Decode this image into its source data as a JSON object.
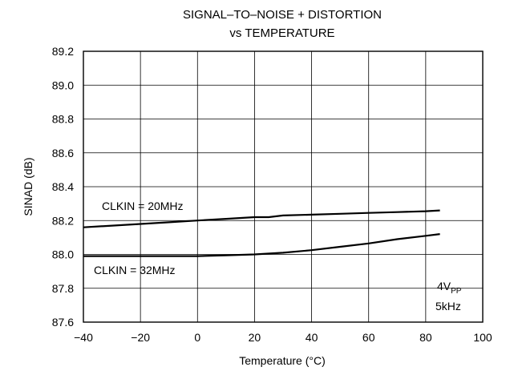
{
  "chart_data": {
    "type": "line",
    "title_lines": [
      "SIGNAL–TO–NOISE + DISTORTION",
      "vs TEMPERATURE"
    ],
    "xlabel": "Temperature (°C)",
    "ylabel": "SINAD (dB)",
    "xlim": [
      -40,
      100
    ],
    "ylim": [
      87.6,
      89.2
    ],
    "x_ticks": [
      -40,
      -20,
      0,
      20,
      40,
      60,
      80,
      100
    ],
    "x_tick_labels": [
      "−40",
      "−20",
      "0",
      "20",
      "40",
      "60",
      "80",
      "100"
    ],
    "y_ticks": [
      87.6,
      87.8,
      88.0,
      88.2,
      88.4,
      88.6,
      88.8,
      89.0,
      89.2
    ],
    "y_tick_labels": [
      "87.6",
      "87.8",
      "88.0",
      "88.2",
      "88.4",
      "88.6",
      "88.8",
      "89.0",
      "89.2"
    ],
    "grid": true,
    "series": [
      {
        "name": "CLKIN = 20MHz",
        "x": [
          -40,
          -30,
          -20,
          -10,
          0,
          10,
          20,
          25,
          30,
          40,
          50,
          60,
          70,
          80,
          85
        ],
        "y": [
          88.16,
          88.17,
          88.18,
          88.19,
          88.2,
          88.21,
          88.22,
          88.22,
          88.23,
          88.235,
          88.24,
          88.245,
          88.25,
          88.255,
          88.26
        ]
      },
      {
        "name": "CLKIN = 32MHz",
        "x": [
          -40,
          -20,
          0,
          10,
          20,
          30,
          40,
          50,
          60,
          70,
          80,
          85
        ],
        "y": [
          87.99,
          87.99,
          87.99,
          87.995,
          88.0,
          88.01,
          88.025,
          88.045,
          88.065,
          88.09,
          88.11,
          88.12
        ]
      }
    ],
    "annotation": {
      "line1_main": "4V",
      "line1_sub": "PP",
      "line2": "5kHz"
    }
  }
}
